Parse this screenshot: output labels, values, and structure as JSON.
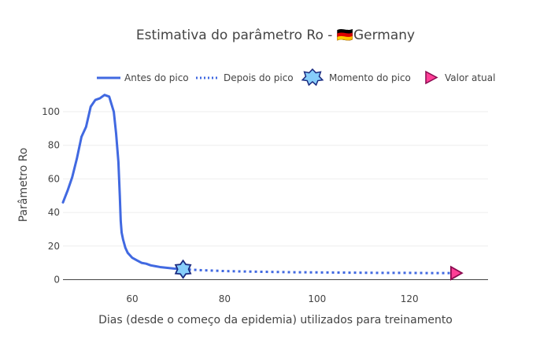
{
  "chart_data": {
    "type": "line",
    "title": "Estimativa do parâmetro Ro - 🇩🇪Germany",
    "xlabel": "Dias (desde o começo da epidemia) utilizados para treinamento",
    "ylabel": "Parâmetro Ro",
    "xlim": [
      45,
      137
    ],
    "ylim": [
      -4,
      115
    ],
    "x_ticks": [
      60,
      80,
      100,
      120
    ],
    "y_ticks": [
      0,
      20,
      40,
      60,
      80,
      100
    ],
    "grid": true,
    "legend_position": "top",
    "series": [
      {
        "name": "Antes do pico",
        "style": "solid",
        "color": "#4169E1",
        "x": [
          45,
          46,
          47,
          48,
          49,
          50,
          51,
          52,
          53,
          54,
          55,
          56,
          56.5,
          57,
          57.3,
          57.5,
          57.7,
          58,
          58.5,
          59,
          60,
          61,
          62,
          63,
          64,
          65,
          66,
          67,
          68,
          69,
          70,
          71
        ],
        "y": [
          46,
          53,
          61,
          72,
          85,
          91,
          103,
          107,
          108,
          110,
          109,
          100,
          87,
          70,
          50,
          35,
          28,
          24,
          19,
          16,
          13,
          11.5,
          10,
          9.5,
          8.5,
          8,
          7.5,
          7.2,
          6.9,
          6.6,
          6.4,
          6.2
        ]
      },
      {
        "name": "Depois do pico",
        "style": "dotted",
        "color": "#4169E1",
        "x": [
          71,
          75,
          80,
          85,
          90,
          95,
          100,
          105,
          110,
          115,
          120,
          125,
          130
        ],
        "y": [
          6.2,
          5.6,
          5.1,
          4.8,
          4.6,
          4.4,
          4.3,
          4.2,
          4.1,
          4.0,
          4.0,
          3.9,
          3.9
        ]
      },
      {
        "name": "Momento do pico",
        "marker": "star",
        "color": "#87CEFA",
        "edge_color": "#1a2a80",
        "x": [
          71
        ],
        "y": [
          6.2
        ]
      },
      {
        "name": "Valor atual",
        "marker": "triangle-right",
        "color": "#FF3E96",
        "edge_color": "#8B0A50",
        "x": [
          130
        ],
        "y": [
          3.9
        ]
      }
    ]
  }
}
